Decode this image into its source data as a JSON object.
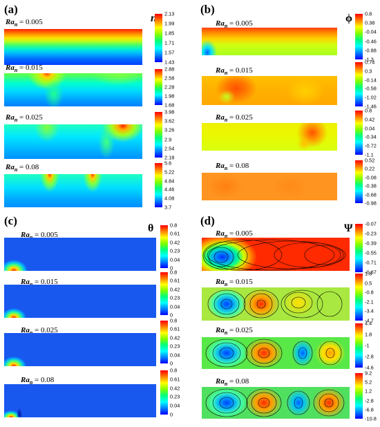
{
  "panels": [
    {
      "label": "(a)",
      "symbol": "n",
      "colormap": [
        "#0000ff",
        "#0080ff",
        "#00ffff",
        "#00ff80",
        "#80ff00",
        "#ffff00",
        "#ff8000",
        "#ff0000"
      ],
      "cases": [
        {
          "ra_main": "Ra",
          "ra_sub": "n",
          "ra_value": " = 0.005",
          "ticks": [
            "2.13",
            "1.99",
            "1.85",
            "1.71",
            "1.57",
            "1.43"
          ]
        },
        {
          "ra_main": "Ra",
          "ra_sub": "n",
          "ra_value": " = 0.015",
          "ticks": [
            "2.88",
            "2.58",
            "2.28",
            "1.98",
            "1.68"
          ]
        },
        {
          "ra_main": "Ra",
          "ra_sub": "n",
          "ra_value": " = 0.025",
          "ticks": [
            "3.98",
            "3.62",
            "3.26",
            "2.9",
            "2.54",
            "2.18"
          ]
        },
        {
          "ra_main": "Ra",
          "ra_sub": "n",
          "ra_value": " = 0.08",
          "ticks": [
            "5.6",
            "5.22",
            "4.84",
            "4.46",
            "4.08",
            "3.7"
          ]
        }
      ]
    },
    {
      "label": "(b)",
      "symbol": "ϕ",
      "cases": [
        {
          "ra_main": "Ra",
          "ra_sub": "n",
          "ra_value": " = 0.005",
          "ticks": [
            "0.8",
            "0.38",
            "-0.04",
            "-0.46",
            "-0.88",
            "-1.3"
          ]
        },
        {
          "ra_main": "Ra",
          "ra_sub": "n",
          "ra_value": " = 0.015",
          "ticks": [
            "0.74",
            "0.3",
            "-0.14",
            "-0.58",
            "-1.02",
            "-1.46"
          ]
        },
        {
          "ra_main": "Ra",
          "ra_sub": "n",
          "ra_value": " = 0.025",
          "ticks": [
            "0.8",
            "0.42",
            "0.04",
            "-0.34",
            "-0.72",
            "-1.1"
          ]
        },
        {
          "ra_main": "Ra",
          "ra_sub": "n",
          "ra_value": " = 0.08",
          "ticks": [
            "0.52",
            "0.22",
            "-0.08",
            "-0.38",
            "-0.68",
            "-0.98"
          ]
        }
      ]
    },
    {
      "label": "(c)",
      "symbol": "θ",
      "cases": [
        {
          "ra_main": "Ra",
          "ra_sub": "n",
          "ra_value": " = 0.005",
          "ticks": [
            "0.8",
            "0.61",
            "0.42",
            "0.23",
            "0.04",
            "0"
          ]
        },
        {
          "ra_main": "Ra",
          "ra_sub": "n",
          "ra_value": " = 0.015",
          "ticks": [
            "0.8",
            "0.61",
            "0.42",
            "0.23",
            "0.04",
            "0"
          ]
        },
        {
          "ra_main": "Ra",
          "ra_sub": "n",
          "ra_value": " = 0.025",
          "ticks": [
            "0.8",
            "0.61",
            "0.42",
            "0.23",
            "0.04",
            "0"
          ]
        },
        {
          "ra_main": "Ra",
          "ra_sub": "n",
          "ra_value": " = 0.08",
          "ticks": [
            "0.8",
            "0.61",
            "0.42",
            "0.23",
            "0.04",
            "0"
          ]
        }
      ]
    },
    {
      "label": "(d)",
      "symbol": "Ψ",
      "cases": [
        {
          "ra_main": "Ra",
          "ra_sub": "n",
          "ra_value": " = 0.005",
          "ticks": [
            "-0.07",
            "-0.23",
            "-0.39",
            "-0.55",
            "-0.71",
            "-0.87"
          ]
        },
        {
          "ra_main": "Ra",
          "ra_sub": "n",
          "ra_value": " = 0.015",
          "ticks": [
            "1.8",
            "0.5",
            "-0.8",
            "-2.1",
            "-3.4",
            "-4.7"
          ]
        },
        {
          "ra_main": "Ra",
          "ra_sub": "n",
          "ra_value": " = 0.025",
          "ticks": [
            "4.4",
            "1.8",
            "-1",
            "-2.8",
            "-4.6"
          ]
        },
        {
          "ra_main": "Ra",
          "ra_sub": "n",
          "ra_value": " = 0.08",
          "ticks": [
            "9.2",
            "5.2",
            "1.2",
            "-2.8",
            "-6.8",
            "-10.8"
          ]
        }
      ]
    }
  ]
}
